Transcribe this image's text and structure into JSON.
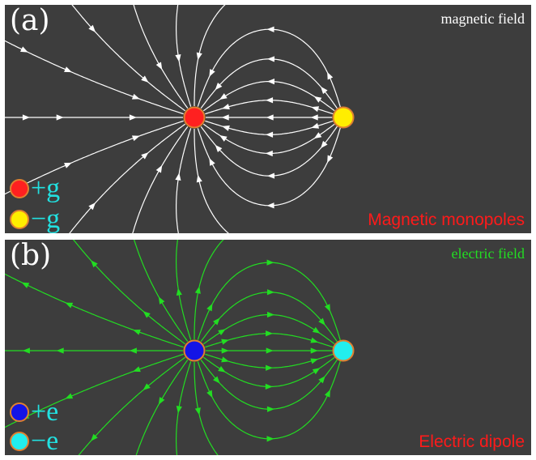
{
  "panel_a": {
    "letter": "(a)",
    "field_label": "magnetic field",
    "legend": [
      {
        "symbol": "+g",
        "color": "#ff2020"
      },
      {
        "symbol": "−g",
        "color": "#ffee00"
      }
    ],
    "bottom_label": "Magnetic monopoles",
    "line_color": "#ffffff",
    "label_color": "#ffffff",
    "pos_charge_color": "#ff2020",
    "neg_charge_color": "#ffee00"
  },
  "panel_b": {
    "letter": "(b)",
    "field_label": "electric field",
    "legend": [
      {
        "symbol": "+e",
        "color": "#1414e6"
      },
      {
        "symbol": "−e",
        "color": "#22eeee"
      }
    ],
    "bottom_label": "Electric dipole",
    "line_color": "#22dd22",
    "label_color": "#22dd22",
    "pos_charge_color": "#1414e6",
    "neg_charge_color": "#22eeee"
  },
  "colors": {
    "panel_bg": "#3d3d3d",
    "charge_border": "#e08030",
    "legend_text": "#22e0e0",
    "bottom_label": "#ff1a1a"
  }
}
